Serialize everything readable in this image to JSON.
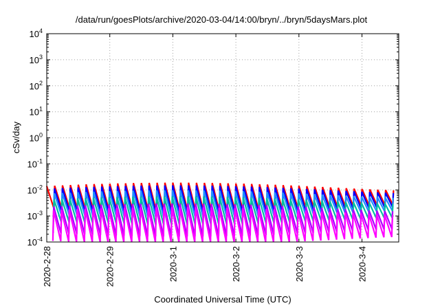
{
  "chart_data": {
    "type": "line",
    "title": "/data/run/goesPlots/archive/2020-03-04/14:00/bryn/../bryn/5daysMars.plot",
    "xlabel": "Coordinated Universal Time (UTC)",
    "ylabel": "cSv/day",
    "y_scale": "log",
    "ylim": [
      0.0001,
      10000
    ],
    "xlim": [
      "2020-02-28T00:00",
      "2020-03-04T14:00"
    ],
    "grid": true,
    "x_ticks": [
      "2020-2-28",
      "2020-2-29",
      "2020-3-1",
      "2020-3-2",
      "2020-3-3",
      "2020-3-4"
    ],
    "y_ticks": [
      {
        "base": "10",
        "exp": "-4"
      },
      {
        "base": "10",
        "exp": "-3"
      },
      {
        "base": "10",
        "exp": "-2"
      },
      {
        "base": "10",
        "exp": "-1"
      },
      {
        "base": "10",
        "exp": "0"
      },
      {
        "base": "10",
        "exp": "1"
      },
      {
        "base": "10",
        "exp": "2"
      },
      {
        "base": "10",
        "exp": "3"
      },
      {
        "base": "10",
        "exp": "4"
      }
    ],
    "series": [
      {
        "color": "#ff0000",
        "peak": 0.014,
        "trough": 0.0019,
        "phase": 0.0
      },
      {
        "color": "#0000ff",
        "peak": 0.011,
        "trough": 0.0015,
        "phase": 0.02
      },
      {
        "color": "#1e90ff",
        "peak": 0.0072,
        "trough": 0.0011,
        "phase": 0.05
      },
      {
        "color": "#00c0a0",
        "peak": 0.0042,
        "trough": 0.0006,
        "phase": 0.08
      },
      {
        "color": "#aa00ff",
        "peak": 0.0022,
        "trough": 0.00022,
        "phase": 0.11
      },
      {
        "color": "#ff00ff",
        "peak": 0.0016,
        "trough": 0.00011,
        "phase": 0.14
      }
    ],
    "cycle_hours": 3.0,
    "note_shape": "sawtooth oscillation repeating every ~3 hours across all series"
  }
}
